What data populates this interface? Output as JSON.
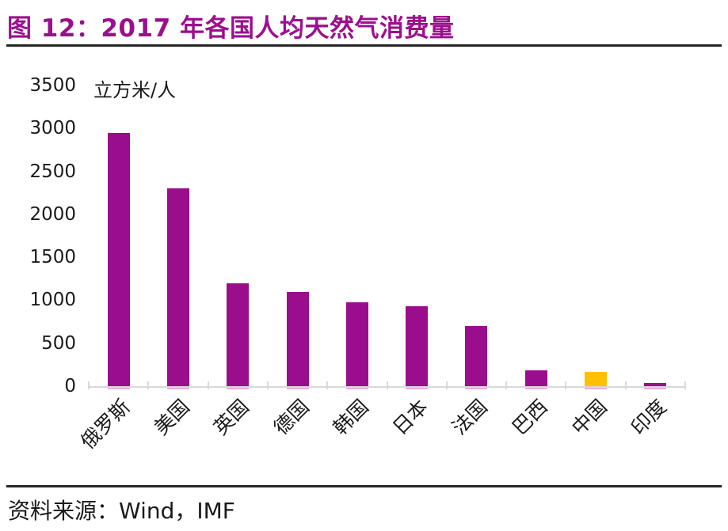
{
  "header": {
    "title": "图 12：2017 年各国人均天然气消费量"
  },
  "chart_data": {
    "type": "bar",
    "title": "图 12：2017 年各国人均天然气消费量",
    "unit_label": "立方米/人",
    "categories": [
      "俄罗斯",
      "美国",
      "英国",
      "德国",
      "韩国",
      "日本",
      "法国",
      "巴西",
      "中国",
      "印度"
    ],
    "values": [
      2950,
      2300,
      1200,
      1100,
      975,
      930,
      700,
      185,
      165,
      40
    ],
    "ylim": [
      0,
      3500
    ],
    "ytick_step": 500,
    "yticks": [
      3500,
      3000,
      2500,
      2000,
      1500,
      1000,
      500,
      0
    ],
    "grid": false,
    "legend": "none",
    "highlight": {
      "category": "中国",
      "index": 8
    }
  },
  "colors": {
    "title": "#9c0f8e",
    "bar": "#9a0d8c",
    "highlight_bar": "#ffc000",
    "axis": "#d9d9d9",
    "rule": "#262626",
    "text": "#1a1a1a"
  },
  "footer": {
    "source_label": "资料来源：Wind，IMF"
  }
}
